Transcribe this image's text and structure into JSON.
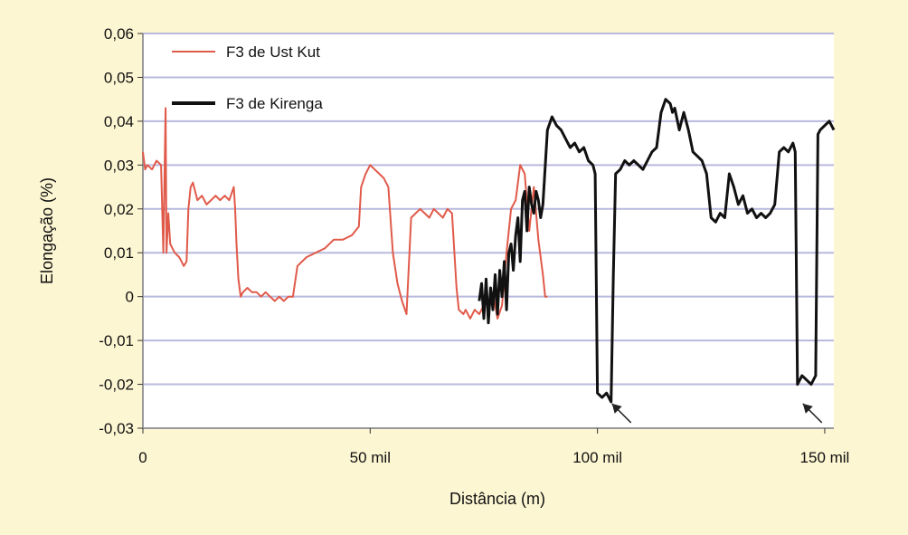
{
  "chart_data": {
    "type": "line",
    "xlabel": "Distância (m)",
    "ylabel": "Elongação (%)",
    "xlim": [
      0,
      152000
    ],
    "ylim": [
      -0.03,
      0.06
    ],
    "x_ticks": [
      {
        "value": 0,
        "label": "0"
      },
      {
        "value": 50000,
        "label": "50 mil"
      },
      {
        "value": 100000,
        "label": "100 mil"
      },
      {
        "value": 150000,
        "label": "150 mil"
      }
    ],
    "y_ticks": [
      {
        "value": 0.06,
        "label": "0,06"
      },
      {
        "value": 0.05,
        "label": "0,05"
      },
      {
        "value": 0.04,
        "label": "0,04"
      },
      {
        "value": 0.03,
        "label": "0,03"
      },
      {
        "value": 0.02,
        "label": "0,02"
      },
      {
        "value": 0.01,
        "label": "0,01"
      },
      {
        "value": 0,
        "label": "0"
      },
      {
        "value": -0.01,
        "label": "-0,01"
      },
      {
        "value": -0.02,
        "label": "-0,02"
      },
      {
        "value": -0.03,
        "label": "-0,03"
      }
    ],
    "grid": true,
    "legend_position": "top-left",
    "colors": {
      "background": "#fdf6d2",
      "plot_area": "#ffffff",
      "grid": "#b9b9de",
      "ust_kut": "#e05a4a",
      "kirenga": "#111111"
    },
    "series": [
      {
        "name": "F3 de Ust Kut",
        "color": "#e05a4a",
        "x": [
          0,
          500,
          1000,
          2000,
          3000,
          4000,
          4500,
          5000,
          5200,
          5600,
          6000,
          7000,
          8000,
          9000,
          9600,
          10000,
          10500,
          11000,
          12000,
          13000,
          14000,
          15000,
          16000,
          17000,
          18000,
          19000,
          20000,
          20300,
          20600,
          21000,
          21500,
          22000,
          23000,
          24000,
          25000,
          26000,
          27000,
          28000,
          29000,
          30000,
          31000,
          32000,
          33000,
          34000,
          36000,
          38000,
          40000,
          42000,
          44000,
          46000,
          47500,
          48000,
          49000,
          50000,
          51000,
          52000,
          53000,
          54000,
          55000,
          56000,
          57000,
          58000,
          59000,
          60000,
          61000,
          62000,
          63000,
          64000,
          65000,
          66000,
          67000,
          68000,
          69000,
          69500,
          70500,
          71000,
          72000,
          73000,
          74000,
          75000,
          76000,
          77000,
          78000,
          79000,
          80000,
          81000,
          82000,
          83000,
          84000,
          85000,
          86000,
          87000,
          88000,
          88500,
          89000
        ],
        "values": [
          0.033,
          0.029,
          0.03,
          0.029,
          0.031,
          0.03,
          0.01,
          0.043,
          0.01,
          0.019,
          0.012,
          0.01,
          0.009,
          0.007,
          0.008,
          0.02,
          0.025,
          0.026,
          0.022,
          0.023,
          0.021,
          0.022,
          0.023,
          0.022,
          0.023,
          0.022,
          0.025,
          0.02,
          0.012,
          0.004,
          0.0,
          0.001,
          0.002,
          0.001,
          0.001,
          0.0,
          0.001,
          0.0,
          -0.001,
          0.0,
          -0.001,
          0.0,
          0.0,
          0.007,
          0.009,
          0.01,
          0.011,
          0.013,
          0.013,
          0.014,
          0.016,
          0.025,
          0.028,
          0.03,
          0.029,
          0.028,
          0.027,
          0.025,
          0.01,
          0.003,
          -0.001,
          -0.004,
          0.018,
          0.019,
          0.02,
          0.019,
          0.018,
          0.02,
          0.019,
          0.018,
          0.02,
          0.019,
          0.002,
          -0.003,
          -0.004,
          -0.003,
          -0.005,
          -0.003,
          -0.004,
          -0.002,
          -0.001,
          0.001,
          -0.005,
          -0.002,
          0.01,
          0.02,
          0.022,
          0.03,
          0.028,
          0.015,
          0.025,
          0.013,
          0.005,
          0.0,
          0.0
        ]
      },
      {
        "name": "F3 de Kirenga",
        "color": "#111111",
        "x": [
          74000,
          74500,
          75000,
          75500,
          76000,
          76500,
          77000,
          77500,
          78000,
          78500,
          79000,
          79500,
          80000,
          80500,
          81000,
          81500,
          82000,
          82500,
          83000,
          83500,
          84000,
          84500,
          85000,
          85500,
          86000,
          86500,
          87000,
          87500,
          88000,
          89000,
          90000,
          91000,
          92000,
          93000,
          94000,
          95000,
          96000,
          97000,
          98000,
          99000,
          99500,
          100000,
          101000,
          102000,
          103000,
          103500,
          104000,
          105000,
          106000,
          107000,
          108000,
          109000,
          110000,
          111000,
          112000,
          113000,
          114000,
          115000,
          116000,
          116500,
          117000,
          118000,
          119000,
          120000,
          121000,
          122000,
          123000,
          124000,
          125000,
          126000,
          127000,
          128000,
          129000,
          130000,
          131000,
          132000,
          133000,
          134000,
          135000,
          136000,
          137000,
          138000,
          139000,
          140000,
          141000,
          142000,
          143000,
          143500,
          144000,
          145000,
          146000,
          147000,
          148000,
          148500,
          149000,
          150000,
          151000,
          152000
        ],
        "values": [
          -0.001,
          0.003,
          -0.005,
          0.004,
          -0.006,
          0.002,
          -0.003,
          0.005,
          -0.004,
          0.006,
          0.0,
          0.008,
          -0.003,
          0.01,
          0.012,
          0.006,
          0.014,
          0.018,
          0.008,
          0.022,
          0.024,
          0.015,
          0.025,
          0.021,
          0.019,
          0.024,
          0.022,
          0.018,
          0.021,
          0.038,
          0.041,
          0.039,
          0.038,
          0.036,
          0.034,
          0.035,
          0.033,
          0.034,
          0.031,
          0.03,
          0.028,
          -0.022,
          -0.023,
          -0.022,
          -0.024,
          0.005,
          0.028,
          0.029,
          0.031,
          0.03,
          0.031,
          0.03,
          0.029,
          0.031,
          0.033,
          0.034,
          0.042,
          0.045,
          0.044,
          0.042,
          0.043,
          0.038,
          0.042,
          0.038,
          0.033,
          0.032,
          0.031,
          0.028,
          0.018,
          0.017,
          0.019,
          0.018,
          0.028,
          0.025,
          0.021,
          0.023,
          0.019,
          0.02,
          0.018,
          0.019,
          0.018,
          0.019,
          0.021,
          0.033,
          0.034,
          0.033,
          0.035,
          0.033,
          -0.02,
          -0.018,
          -0.019,
          -0.02,
          -0.018,
          0.037,
          0.038,
          0.039,
          0.04,
          0.038
        ]
      }
    ],
    "annotations": [
      {
        "type": "arrow",
        "x": 102000,
        "y": -0.024,
        "label": ""
      },
      {
        "type": "arrow",
        "x": 144000,
        "y": -0.024,
        "label": ""
      }
    ]
  }
}
